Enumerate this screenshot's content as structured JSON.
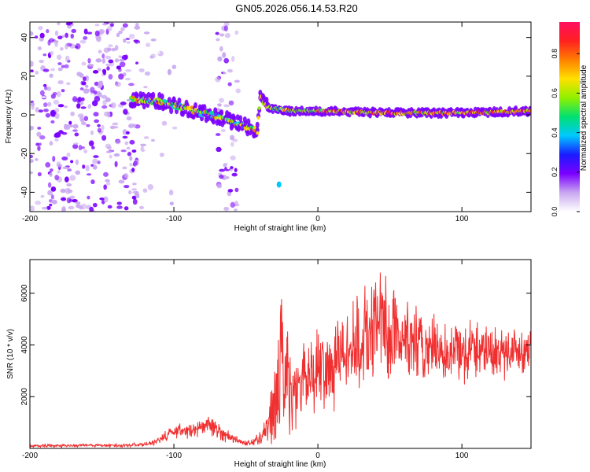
{
  "title": "GN05.2026.056.14.53.R20",
  "colors": {
    "snr_line": "#f03030",
    "background": "#ffffff",
    "colormap": [
      "#ffffff",
      "#c9a8f0",
      "#7a00ff",
      "#1a1aff",
      "#00c8ff",
      "#00e070",
      "#90f000",
      "#ffe000",
      "#ff8000",
      "#ff2020",
      "#ff1060"
    ]
  },
  "chart_data": [
    {
      "type": "heatmap",
      "title": "GN05.2026.056.14.53.R20",
      "xlabel": "Height of straight line (km)",
      "ylabel": "Frequency (Hz)",
      "xlim": [
        -200,
        148
      ],
      "ylim": [
        -50,
        48
      ],
      "xticks": [
        "-200",
        "-100",
        "0",
        "100"
      ],
      "xtick_values": [
        -200,
        -100,
        0,
        100
      ],
      "yticks": [
        "40",
        "20",
        "0",
        "-20",
        "-40"
      ],
      "ytick_values": [
        40,
        20,
        0,
        -20,
        -40
      ],
      "colorbar": {
        "label": "Normalized spectral amplitude",
        "ticks": [
          "0.0",
          "0.2",
          "0.4",
          "0.6",
          "0.8"
        ],
        "tick_values": [
          0.0,
          0.2,
          0.4,
          0.6,
          0.8
        ],
        "range": [
          0.0,
          0.96
        ]
      },
      "features": [
        {
          "name": "broadband noise",
          "x_range": [
            -200,
            -125
          ],
          "freq_range": [
            -50,
            48
          ],
          "amplitude": 0.15
        },
        {
          "name": "broadband noise",
          "x_range": [
            -125,
            -95
          ],
          "freq_range": [
            -50,
            48
          ],
          "amplitude": 0.05
        },
        {
          "name": "broadband noise",
          "x_range": [
            -70,
            -55
          ],
          "freq_range": [
            -50,
            48
          ],
          "amplitude": 0.12
        },
        {
          "name": "doppler trace",
          "points": [
            [
              -130,
              8
            ],
            [
              -110,
              7
            ],
            [
              -100,
              5
            ],
            [
              -80,
              1
            ],
            [
              -60,
              -3
            ],
            [
              -42,
              -8
            ],
            [
              -40,
              9
            ],
            [
              -35,
              4
            ],
            [
              -20,
              2
            ],
            [
              0,
              2
            ],
            [
              50,
              1
            ],
            [
              100,
              1
            ],
            [
              148,
              2
            ]
          ],
          "amplitude": 0.6
        },
        {
          "name": "echo",
          "x": -27,
          "freq": -36,
          "amplitude": 0.2
        }
      ]
    },
    {
      "type": "line",
      "xlabel": "Height of straight line (km)",
      "ylabel": "SNR (10 * v/v)",
      "xlim": [
        -200,
        148
      ],
      "ylim": [
        0,
        7300
      ],
      "xticks": [
        "-200",
        "-100",
        "0",
        "100"
      ],
      "xtick_values": [
        -200,
        -100,
        0,
        100
      ],
      "yticks": [
        "6000",
        "4000",
        "2000"
      ],
      "ytick_values": [
        6000,
        4000,
        2000
      ],
      "series": [
        {
          "name": "SNR",
          "x": [
            -200,
            -180,
            -160,
            -140,
            -120,
            -110,
            -100,
            -90,
            -80,
            -75,
            -70,
            -60,
            -50,
            -45,
            -40,
            -35,
            -30,
            -28,
            -25,
            -20,
            -15,
            -10,
            -5,
            0,
            5,
            10,
            15,
            20,
            25,
            30,
            35,
            40,
            45,
            50,
            55,
            60,
            65,
            70,
            80,
            90,
            100,
            110,
            120,
            130,
            140,
            148
          ],
          "values": [
            100,
            100,
            120,
            110,
            150,
            300,
            700,
            650,
            800,
            900,
            700,
            400,
            200,
            250,
            400,
            900,
            1500,
            2500,
            3500,
            2600,
            2200,
            2700,
            3000,
            3100,
            3300,
            3000,
            3600,
            3800,
            3900,
            4100,
            4400,
            4600,
            5000,
            4200,
            4500,
            4300,
            4100,
            3900,
            3800,
            3700,
            3800,
            3900,
            3800,
            3700,
            3800,
            3900
          ],
          "spread": [
            60,
            60,
            60,
            60,
            80,
            150,
            300,
            300,
            350,
            400,
            300,
            200,
            100,
            150,
            300,
            800,
            1300,
            2500,
            2800,
            1800,
            1300,
            1500,
            1600,
            1600,
            1700,
            1500,
            1700,
            1800,
            1800,
            1900,
            2000,
            2000,
            2200,
            1900,
            2000,
            1800,
            1700,
            1500,
            1300,
            1200,
            1200,
            1200,
            1100,
            1000,
            900,
            900
          ]
        }
      ]
    }
  ]
}
